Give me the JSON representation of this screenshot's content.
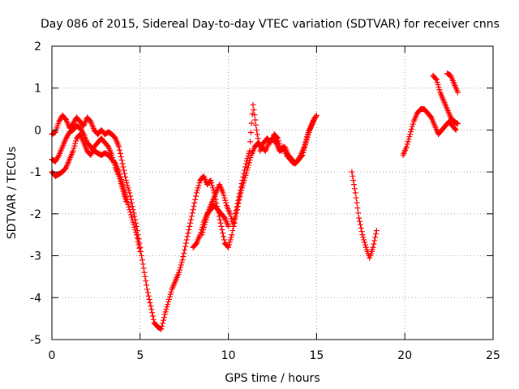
{
  "chart_data": {
    "type": "scatter",
    "title": "Day 086 of 2015, Sidereal Day-to-day VTEC variation (SDTVAR) for receiver cnns",
    "xlabel": "GPS time / hours",
    "ylabel": "SDTVAR / TECUs",
    "xlim": [
      0,
      25
    ],
    "ylim": [
      -5,
      2
    ],
    "xticks": [
      "0",
      "5",
      "10",
      "15",
      "20",
      "25"
    ],
    "yticks": [
      "2",
      "1",
      "0",
      "-1",
      "-2",
      "-3",
      "-4",
      "-5"
    ],
    "grid": true,
    "legend": "none",
    "marker": "plus",
    "color": "#ff0000",
    "series": [
      {
        "x": [
          0.0,
          0.2,
          0.4,
          0.6,
          0.8,
          1.0,
          1.2,
          1.4,
          1.6,
          1.8,
          2.0,
          2.2,
          2.4,
          2.6,
          2.8,
          3.0,
          3.2,
          3.4,
          3.6,
          3.8,
          4.0,
          4.2,
          4.4,
          4.6,
          4.8,
          5.0,
          5.2,
          5.4,
          5.6,
          5.8,
          6.0,
          6.2,
          6.4,
          6.6,
          6.8,
          7.0,
          7.2,
          7.4,
          7.6,
          7.8,
          8.0,
          8.2,
          8.4,
          8.6,
          8.8,
          9.0,
          9.2,
          9.4,
          9.6,
          9.8,
          10.0,
          10.2,
          10.4,
          10.6,
          10.8,
          11.0,
          11.2,
          11.4,
          11.6,
          11.8,
          12.0,
          12.2,
          12.4,
          12.6,
          12.8,
          13.0,
          13.2,
          13.4,
          13.6,
          13.8,
          14.0,
          14.2,
          14.4,
          14.6,
          14.8,
          15.0
        ],
        "y": [
          -0.1,
          -0.05,
          0.2,
          0.35,
          0.25,
          0.05,
          0.15,
          0.3,
          0.2,
          0.1,
          0.3,
          0.2,
          0.0,
          -0.1,
          0.0,
          -0.1,
          -0.05,
          -0.1,
          -0.2,
          -0.4,
          -0.8,
          -1.2,
          -1.5,
          -1.9,
          -2.3,
          -2.8,
          -3.3,
          -3.8,
          -4.2,
          -4.6,
          -4.7,
          -4.75,
          -4.4,
          -4.1,
          -3.8,
          -3.6,
          -3.4,
          -3.1,
          -2.7,
          -2.3,
          -1.9,
          -1.5,
          -1.2,
          -1.1,
          -1.3,
          -1.2,
          -1.5,
          -1.9,
          -2.3,
          -2.7,
          -2.8,
          -2.5,
          -2.0,
          -1.6,
          -1.2,
          -0.8,
          -0.5,
          0.6,
          0.0,
          -0.5,
          -0.3,
          -0.2,
          -0.3,
          -0.1,
          -0.2,
          -0.5,
          -0.4,
          -0.6,
          -0.7,
          -0.8,
          -0.7,
          -0.6,
          -0.3,
          0.0,
          0.2,
          0.35
        ]
      },
      {
        "x": [
          0.0,
          0.2,
          0.4,
          0.6,
          0.8,
          1.0,
          1.2,
          1.4,
          1.6,
          1.8,
          2.0,
          2.2,
          2.4,
          2.6,
          2.8,
          3.0,
          3.2,
          3.4,
          3.6,
          3.8,
          4.0,
          4.2,
          4.4,
          4.6,
          4.8,
          5.0
        ],
        "y": [
          -0.7,
          -0.75,
          -0.6,
          -0.4,
          -0.2,
          -0.05,
          0.0,
          0.1,
          0.05,
          -0.1,
          -0.3,
          -0.4,
          -0.5,
          -0.55,
          -0.6,
          -0.55,
          -0.6,
          -0.7,
          -0.8,
          -1.0,
          -1.3,
          -1.6,
          -1.9,
          -2.2,
          -2.5,
          -2.9
        ]
      },
      {
        "x": [
          0.0,
          0.2,
          0.4,
          0.6,
          0.8,
          1.0,
          1.2,
          1.4,
          1.6,
          1.8,
          2.0,
          2.2,
          2.4,
          2.6,
          2.8,
          3.0,
          3.2,
          3.4,
          3.6,
          3.8,
          4.0,
          4.2
        ],
        "y": [
          -1.0,
          -1.1,
          -1.05,
          -1.0,
          -0.9,
          -0.7,
          -0.5,
          -0.2,
          -0.1,
          -0.3,
          -0.5,
          -0.6,
          -0.4,
          -0.3,
          -0.2,
          -0.3,
          -0.4,
          -0.6,
          -0.9,
          -1.1,
          -1.4,
          -1.7
        ]
      },
      {
        "x": [
          8.0,
          8.2,
          8.4,
          8.6,
          8.8,
          9.0,
          9.2,
          9.4,
          9.6,
          9.8,
          10.0
        ],
        "y": [
          -2.8,
          -2.7,
          -2.5,
          -2.2,
          -2.0,
          -1.9,
          -1.8,
          -1.9,
          -2.0,
          -2.1,
          -2.3
        ]
      },
      {
        "x": [
          8.5,
          8.7,
          8.9,
          9.1,
          9.3,
          9.5,
          9.7,
          9.9,
          10.1,
          10.3,
          10.5,
          10.7,
          10.9,
          11.1,
          11.3,
          11.5,
          11.7,
          11.9,
          12.1,
          12.3,
          12.5,
          12.7,
          12.9,
          13.1,
          13.3,
          13.5,
          13.7,
          13.9,
          14.1,
          14.3,
          14.5,
          14.7,
          14.9
        ],
        "y": [
          -2.5,
          -2.2,
          -1.9,
          -1.7,
          -1.5,
          -1.3,
          -1.5,
          -1.8,
          -2.0,
          -2.3,
          -1.9,
          -1.5,
          -1.2,
          -0.9,
          -0.6,
          -0.4,
          -0.3,
          -0.4,
          -0.5,
          -0.3,
          -0.2,
          -0.3,
          -0.5,
          -0.4,
          -0.6,
          -0.7,
          -0.8,
          -0.75,
          -0.6,
          -0.4,
          -0.1,
          0.1,
          0.3
        ]
      },
      {
        "x": [
          17.0,
          17.2,
          17.4,
          17.6,
          17.8,
          18.0,
          18.2,
          18.4
        ],
        "y": [
          -1.0,
          -1.5,
          -2.1,
          -2.5,
          -2.8,
          -3.05,
          -2.8,
          -2.4
        ]
      },
      {
        "x": [
          19.9,
          20.1,
          20.3,
          20.5,
          20.7,
          20.9,
          21.1,
          21.3,
          21.5,
          21.7,
          21.9,
          22.1,
          22.3,
          22.5,
          22.7,
          22.9
        ],
        "y": [
          -0.6,
          -0.4,
          -0.1,
          0.2,
          0.4,
          0.5,
          0.5,
          0.4,
          0.3,
          0.1,
          -0.1,
          0.0,
          0.1,
          0.2,
          0.1,
          0.0
        ]
      },
      {
        "x": [
          21.6,
          21.8,
          22.0,
          22.2,
          22.4,
          22.6,
          22.8,
          23.0
        ],
        "y": [
          1.3,
          1.2,
          0.9,
          0.7,
          0.5,
          0.3,
          0.2,
          0.15
        ]
      },
      {
        "x": [
          22.4,
          22.6,
          22.8,
          23.0
        ],
        "y": [
          1.35,
          1.3,
          1.1,
          0.9
        ]
      }
    ]
  }
}
